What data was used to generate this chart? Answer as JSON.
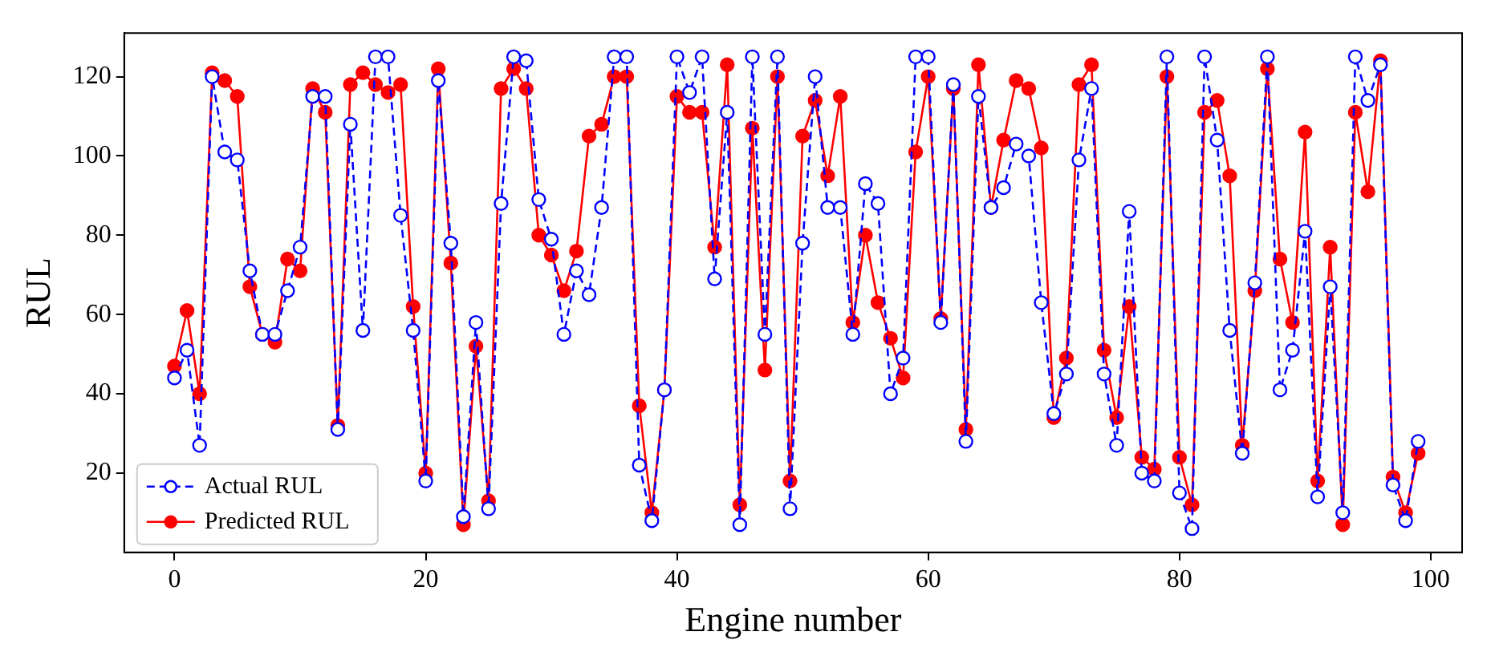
{
  "chart_data": {
    "type": "line",
    "xlabel": "Engine number",
    "ylabel": "RUL",
    "x": [
      0,
      1,
      2,
      3,
      4,
      5,
      6,
      7,
      8,
      9,
      10,
      11,
      12,
      13,
      14,
      15,
      16,
      17,
      18,
      19,
      20,
      21,
      22,
      23,
      24,
      25,
      26,
      27,
      28,
      29,
      30,
      31,
      32,
      33,
      34,
      35,
      36,
      37,
      38,
      39,
      40,
      41,
      42,
      43,
      44,
      45,
      46,
      47,
      48,
      49,
      50,
      51,
      52,
      53,
      54,
      55,
      56,
      57,
      58,
      59,
      60,
      61,
      62,
      63,
      64,
      65,
      66,
      67,
      68,
      69,
      70,
      71,
      72,
      73,
      74,
      75,
      76,
      77,
      78,
      79,
      80,
      81,
      82,
      83,
      84,
      85,
      86,
      87,
      88,
      89,
      90,
      91,
      92,
      93,
      94,
      95,
      96,
      97,
      98,
      99
    ],
    "series": [
      {
        "name": "Actual RUL",
        "color": "#0000ff",
        "line_style": "dashed",
        "values": [
          44,
          51,
          27,
          120,
          101,
          99,
          71,
          55,
          55,
          66,
          77,
          115,
          115,
          31,
          108,
          56,
          125,
          125,
          85,
          56,
          18,
          119,
          78,
          9,
          58,
          11,
          88,
          125,
          124,
          89,
          79,
          55,
          71,
          65,
          87,
          125,
          125,
          22,
          8,
          41,
          125,
          116,
          125,
          69,
          111,
          7,
          125,
          55,
          125,
          11,
          78,
          120,
          87,
          87,
          55,
          93,
          88,
          40,
          49,
          125,
          125,
          58,
          118,
          28,
          115,
          87,
          92,
          103,
          100,
          63,
          35,
          45,
          99,
          117,
          45,
          27,
          86,
          20,
          18,
          125,
          15,
          6,
          125,
          104,
          56,
          25,
          68,
          125,
          41,
          51,
          81,
          14,
          67,
          10,
          125,
          114,
          123,
          17,
          8,
          28
        ]
      },
      {
        "name": "Predicted RUL",
        "color": "#ff0000",
        "line_style": "solid",
        "values": [
          47,
          61,
          40,
          121,
          119,
          115,
          67,
          55,
          53,
          74,
          71,
          117,
          111,
          32,
          118,
          121,
          118,
          116,
          118,
          62,
          20,
          122,
          73,
          7,
          52,
          13,
          117,
          122,
          117,
          80,
          75,
          66,
          76,
          105,
          108,
          120,
          120,
          37,
          10,
          41,
          115,
          111,
          111,
          77,
          123,
          12,
          107,
          46,
          120,
          18,
          105,
          114,
          95,
          115,
          58,
          80,
          63,
          54,
          44,
          101,
          120,
          59,
          117,
          31,
          123,
          87,
          104,
          119,
          117,
          102,
          34,
          49,
          118,
          123,
          51,
          34,
          62,
          24,
          21,
          120,
          24,
          12,
          111,
          114,
          95,
          27,
          66,
          122,
          74,
          58,
          106,
          18,
          77,
          7,
          111,
          91,
          124,
          19,
          10,
          25
        ]
      }
    ],
    "xlim": [
      -4,
      102.5
    ],
    "xticks": [
      0,
      20,
      40,
      60,
      80,
      100
    ],
    "ylim": [
      0,
      131
    ],
    "yticks": [
      20,
      40,
      60,
      80,
      100,
      120
    ],
    "marker": "circle",
    "legend": "bottom left",
    "grid": false
  }
}
